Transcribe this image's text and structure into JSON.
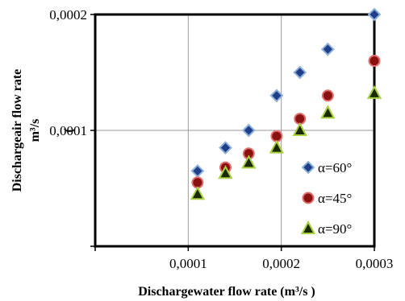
{
  "chart_data": {
    "type": "scatter",
    "title": "",
    "xlabel": "Dischargewater flow rate (m³/s )",
    "ylabel_lines": [
      "Dischargeair flow rate",
      "m³/s",
      "("
    ],
    "xlim": [
      0,
      0.0003
    ],
    "ylim": [
      0,
      0.0002
    ],
    "x_ticks": [
      {
        "value": 0.0001,
        "label": "0,0001"
      },
      {
        "value": 0.0002,
        "label": "0,0002"
      },
      {
        "value": 0.0003,
        "label": "0,0003"
      }
    ],
    "y_ticks": [
      {
        "value": 0.0001,
        "label": "0,0001"
      },
      {
        "value": 0.0002,
        "label": "0,0002"
      }
    ],
    "grid": true,
    "legend_position": "lower-right",
    "series": [
      {
        "name": "α=60°",
        "marker": "diamond",
        "fill": "#1f3f8a",
        "stroke": "#8fb0d8",
        "points": [
          [
            0.00011,
            6.5e-05
          ],
          [
            0.00014,
            8.5e-05
          ],
          [
            0.000165,
            0.0001
          ],
          [
            0.000195,
            0.00013
          ],
          [
            0.00022,
            0.00015
          ],
          [
            0.00025,
            0.00017
          ],
          [
            0.0003,
            0.0002
          ]
        ]
      },
      {
        "name": "α=45°",
        "marker": "circle",
        "fill": "#8b1010",
        "stroke": "#e07070",
        "points": [
          [
            0.00011,
            5.5e-05
          ],
          [
            0.00014,
            6.8e-05
          ],
          [
            0.000165,
            8e-05
          ],
          [
            0.000195,
            9.5e-05
          ],
          [
            0.00022,
            0.00011
          ],
          [
            0.00025,
            0.00013
          ],
          [
            0.0003,
            0.00016
          ]
        ]
      },
      {
        "name": "α=90°",
        "marker": "triangle",
        "fill": "#1a2a00",
        "stroke": "#a8d040",
        "points": [
          [
            0.00011,
            4.5e-05
          ],
          [
            0.00014,
            6.3e-05
          ],
          [
            0.000165,
            7.2e-05
          ],
          [
            0.000195,
            8.5e-05
          ],
          [
            0.00022,
            0.0001
          ],
          [
            0.00025,
            0.000115
          ],
          [
            0.0003,
            0.000132
          ]
        ]
      }
    ]
  }
}
